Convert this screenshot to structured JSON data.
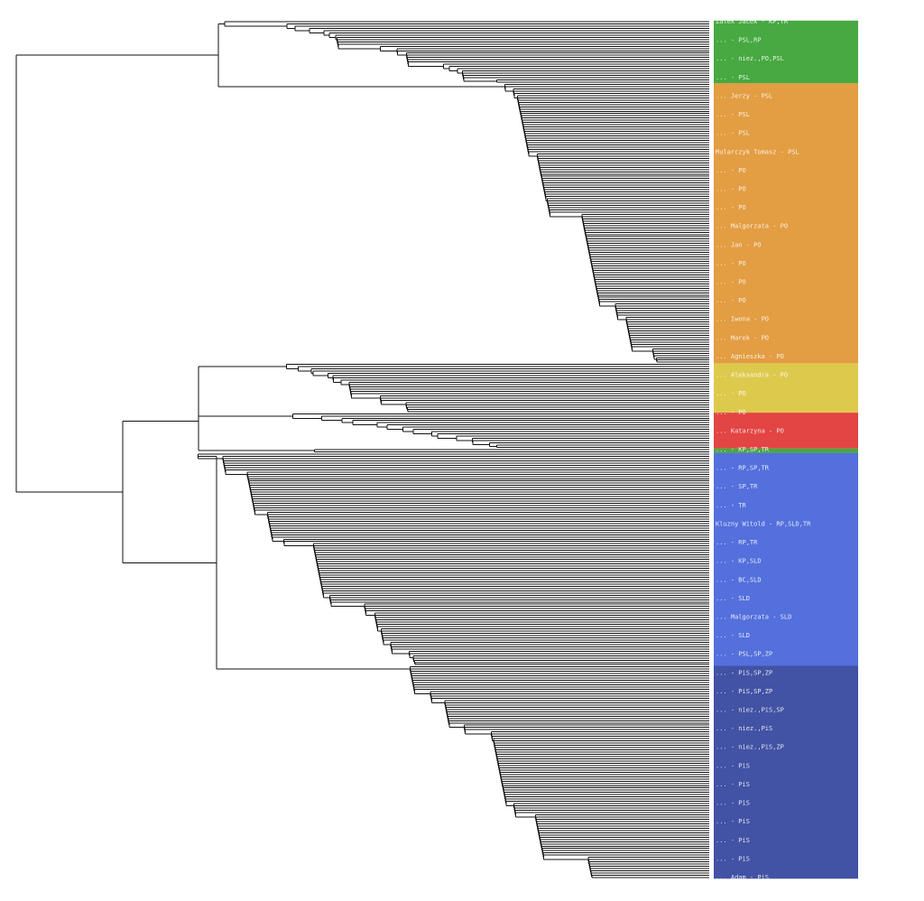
{
  "diagram": {
    "type": "dendrogram",
    "orientation": "leaves-right",
    "clusters": [
      {
        "party": "PSL",
        "color": "#33a02c",
        "leaves": 28
      },
      {
        "party": "PO",
        "color": "#e0922e",
        "leaves": 125
      },
      {
        "party": "TR",
        "color": "#d9c43a",
        "leaves": 22
      },
      {
        "party": "SLD",
        "color": "#e03030",
        "leaves": 16
      },
      {
        "party": "PSL",
        "color": "#33a02c",
        "leaves": 2
      },
      {
        "party": "PiS",
        "color": "#4060d8",
        "leaves": 95
      },
      {
        "party": "PiS",
        "color": "#2d3f9a",
        "leaves": 95
      }
    ],
    "labels": [
      {
        "text": "Zalek Jacek - KP,TR",
        "color": "#e0922e"
      },
      {
        "text": "... - PSL,RP",
        "color": "#33a02c"
      },
      {
        "text": "... - niez.,PO,PSL",
        "color": "#bbbbbb"
      },
      {
        "text": "... - PSL",
        "color": "#33a02c"
      },
      {
        "text": "... Jerzy - PSL",
        "color": "#33a02c"
      },
      {
        "text": "... - PSL",
        "color": "#33a02c"
      },
      {
        "text": "... - PSL",
        "color": "#33a02c"
      },
      {
        "text": "Mularczyk Tomasz - PSL",
        "color": "#33a02c"
      },
      {
        "text": "... - PO",
        "color": "#e0922e"
      },
      {
        "text": "... - PO",
        "color": "#e0922e"
      },
      {
        "text": "... - PO",
        "color": "#e0922e"
      },
      {
        "text": "... Malgorzata - PO",
        "color": "#e0922e"
      },
      {
        "text": "... Jan - PO",
        "color": "#e0922e"
      },
      {
        "text": "... - PO",
        "color": "#e0922e"
      },
      {
        "text": "... - PO",
        "color": "#e0922e"
      },
      {
        "text": "... - PO",
        "color": "#e0922e"
      },
      {
        "text": "... Iwona - PO",
        "color": "#e0922e"
      },
      {
        "text": "... Marek - PO",
        "color": "#e0922e"
      },
      {
        "text": "... Agnieszka - PO",
        "color": "#e0922e"
      },
      {
        "text": "... Aleksandra - PO",
        "color": "#e0922e"
      },
      {
        "text": "... - PO",
        "color": "#e0922e"
      },
      {
        "text": "... - PO",
        "color": "#e0922e"
      },
      {
        "text": "... Katarzyna - PO",
        "color": "#e0922e"
      },
      {
        "text": "... - KP,SP,TR",
        "color": "#d9c43a"
      },
      {
        "text": "... - RP,SP,TR",
        "color": "#d9c43a"
      },
      {
        "text": "... - SP,TR",
        "color": "#d9c43a"
      },
      {
        "text": "... - TR",
        "color": "#d9c43a"
      },
      {
        "text": "Kluzny Witold - RP,SLD,TR",
        "color": "#e03030"
      },
      {
        "text": "... - RP,TR",
        "color": "#d9c43a"
      },
      {
        "text": "... - KP,SLD",
        "color": "#e03030"
      },
      {
        "text": "... - BC,SLD",
        "color": "#e03030"
      },
      {
        "text": "... - SLD",
        "color": "#e03030"
      },
      {
        "text": "... Malgorzata - SLD",
        "color": "#e03030"
      },
      {
        "text": "... - SLD",
        "color": "#e03030"
      },
      {
        "text": "... - PSL,SP,ZP",
        "color": "#33a02c"
      },
      {
        "text": "... - PiS,SP,ZP",
        "color": "#4060d8"
      },
      {
        "text": "... - PiS,SP,ZP",
        "color": "#4060d8"
      },
      {
        "text": "... - niez.,PiS,SP",
        "color": "#4060d8"
      },
      {
        "text": "... - niez.,PiS",
        "color": "#4060d8"
      },
      {
        "text": "... - niez.,PiS,ZP",
        "color": "#4060d8"
      },
      {
        "text": "... - PiS",
        "color": "#2d3f9a"
      },
      {
        "text": "... - PiS",
        "color": "#2d3f9a"
      },
      {
        "text": "... - PiS",
        "color": "#2d3f9a"
      },
      {
        "text": "... - PiS",
        "color": "#2d3f9a"
      },
      {
        "text": "... - PiS",
        "color": "#2d3f9a"
      },
      {
        "text": "... - PiS",
        "color": "#2d3f9a"
      },
      {
        "text": "... Adam - PiS",
        "color": "#2d3f9a"
      }
    ]
  }
}
